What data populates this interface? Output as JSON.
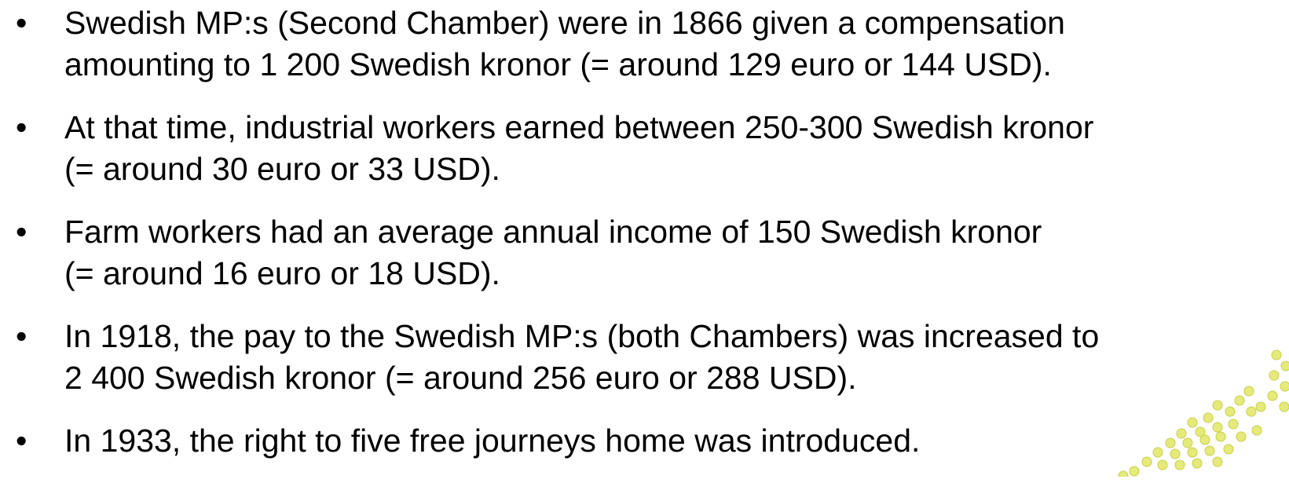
{
  "bullets": [
    [
      "Swedish MP:s (Second Chamber) were in 1866 given a compensation",
      "amounting to 1 200 Swedish kronor (= around 129 euro or 144 USD)."
    ],
    [
      "At that time, industrial workers earned between 250-300 Swedish kronor",
      "(= around 30 euro or 33 USD)."
    ],
    [
      "Farm workers had an average annual income of 150 Swedish kronor",
      "(= around 16 euro or 18 USD)."
    ],
    [
      "In 1918, the pay to the Swedish MP:s (both Chambers) was increased to",
      "2 400 Swedish kronor (= around 256 euro or 288 USD)."
    ],
    [
      "In 1933, the right to five free journeys home was introduced."
    ]
  ]
}
